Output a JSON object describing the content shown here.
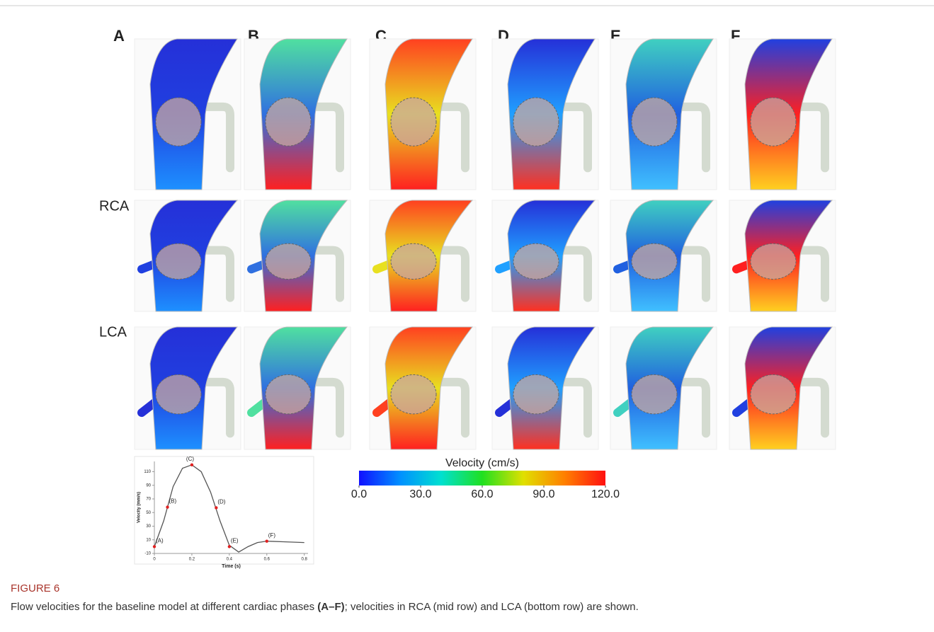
{
  "figure": {
    "panel_labels": [
      "A",
      "B",
      "C",
      "D",
      "E",
      "F"
    ],
    "row_labels": [
      "RCA",
      "LCA"
    ],
    "caption_label": "FIGURE 6",
    "caption": {
      "before": "Flow velocities for the baseline model at different cardiac phases ",
      "bold": "(A–F)",
      "after": "; velocities in RCA (mid row) and LCA (bottom row) are shown."
    }
  },
  "chart_data": [
    {
      "type": "line",
      "xlabel": "Time (s)",
      "ylabel": "Velocity (mm/s)",
      "color": "#555555",
      "x": [
        0,
        0.05,
        0.1,
        0.15,
        0.2,
        0.25,
        0.3,
        0.35,
        0.4,
        0.45,
        0.5,
        0.55,
        0.6,
        0.7,
        0.8
      ],
      "values": [
        0,
        38,
        88,
        115,
        120,
        110,
        80,
        38,
        2,
        -8,
        0,
        6,
        8,
        7,
        6
      ],
      "markers": {
        "x": [
          0,
          0.07,
          0.2,
          0.33,
          0.4,
          0.6
        ],
        "values": [
          0,
          58,
          120,
          57,
          0,
          8
        ],
        "labels": [
          "(A)",
          "(B)",
          "(C)",
          "(D)",
          "(E)",
          "(F)"
        ],
        "color": "#e02020"
      },
      "xlim": [
        0,
        0.82
      ],
      "xticks": [
        0,
        0.2,
        0.4,
        0.6,
        0.8
      ],
      "ylim": [
        -10,
        125
      ],
      "yticks": [
        -10,
        10,
        30,
        50,
        70,
        90,
        110
      ]
    },
    {
      "type": "colorbar",
      "title": "Velocity (cm/s)",
      "colors": [
        "#1010ff",
        "#0090ff",
        "#00e0d0",
        "#20e020",
        "#e0e000",
        "#ff8000",
        "#ff1010"
      ],
      "xlim": [
        0,
        120
      ],
      "xticks": [
        {
          "value": 0,
          "label": "0.0"
        },
        {
          "value": 30,
          "label": "30.0"
        },
        {
          "value": 60,
          "label": "60.0"
        },
        {
          "value": 90,
          "label": "90.0"
        },
        {
          "value": 120,
          "label": "120.0"
        }
      ]
    }
  ]
}
